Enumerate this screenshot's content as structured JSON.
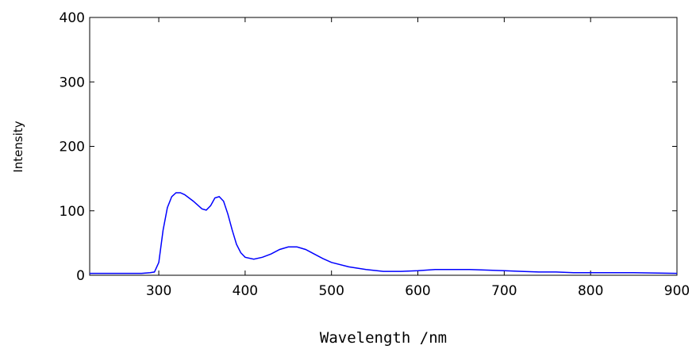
{
  "chart_data": {
    "type": "line",
    "x_label": "Wavelength /nm",
    "y_label": "Intensity",
    "x": [
      220,
      240,
      260,
      280,
      290,
      295,
      300,
      305,
      310,
      315,
      320,
      325,
      330,
      340,
      350,
      355,
      360,
      365,
      370,
      375,
      380,
      385,
      390,
      395,
      400,
      410,
      420,
      430,
      440,
      450,
      460,
      470,
      480,
      490,
      500,
      520,
      540,
      560,
      580,
      600,
      620,
      640,
      660,
      680,
      700,
      720,
      740,
      760,
      780,
      800,
      850,
      900
    ],
    "values": [
      3,
      3,
      3,
      3,
      4,
      5,
      20,
      70,
      105,
      122,
      128,
      128,
      125,
      115,
      103,
      101,
      108,
      120,
      122,
      115,
      95,
      70,
      48,
      35,
      28,
      25,
      28,
      33,
      40,
      44,
      44,
      40,
      33,
      26,
      20,
      13,
      9,
      6,
      6,
      7,
      9,
      9,
      9,
      8,
      7,
      6,
      5,
      5,
      4,
      4,
      4,
      3
    ],
    "color": "#0000ff",
    "xlim": [
      220,
      900
    ],
    "ylim": [
      0,
      400
    ],
    "xticks": [
      300,
      400,
      500,
      600,
      700,
      800,
      900
    ],
    "yticks": [
      0,
      100,
      200,
      300,
      400
    ]
  }
}
